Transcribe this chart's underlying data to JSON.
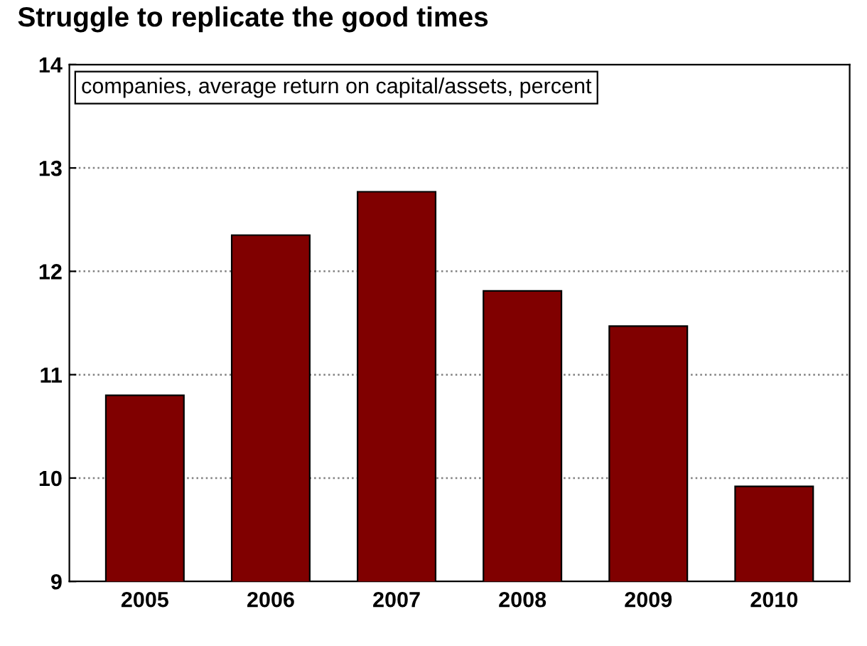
{
  "chart_data": {
    "type": "bar",
    "title": "Struggle to replicate the good times",
    "subtitle": "companies, average return on capital/assets, percent",
    "categories": [
      "2005",
      "2006",
      "2007",
      "2008",
      "2009",
      "2010"
    ],
    "values": [
      10.8,
      12.35,
      12.77,
      11.81,
      11.47,
      9.92
    ],
    "color": "#800000",
    "ylim": [
      9,
      14
    ],
    "yticks": [
      9,
      10,
      11,
      12,
      13,
      14
    ],
    "grid": "y"
  }
}
